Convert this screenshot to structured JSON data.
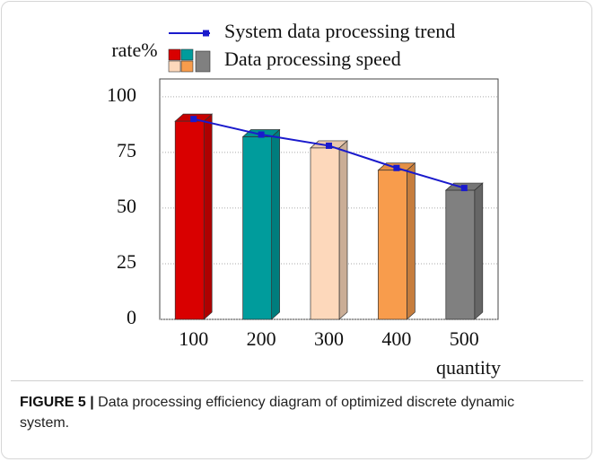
{
  "chart_data": {
    "type": "bar",
    "categories": [
      "100",
      "200",
      "300",
      "400",
      "500"
    ],
    "y_label": "rate%",
    "x_label": "quantity",
    "series": [
      {
        "name": "System data processing trend",
        "type": "line",
        "color": "#1a1acc",
        "values": [
          90,
          83,
          78,
          68,
          59
        ]
      },
      {
        "name": "Data processing speed",
        "type": "bar",
        "colors": [
          "#d90000",
          "#009c9c",
          "#fdd8bb",
          "#f89c4c",
          "#808080"
        ],
        "values": [
          89,
          82,
          77,
          67,
          58
        ]
      }
    ],
    "ylim": [
      0,
      108
    ],
    "yticks": [
      0,
      25,
      50,
      75,
      100
    ],
    "grid": true
  },
  "caption": {
    "label": "FIGURE 5 |",
    "text": "Data processing efficiency diagram of optimized discrete dynamic system."
  }
}
